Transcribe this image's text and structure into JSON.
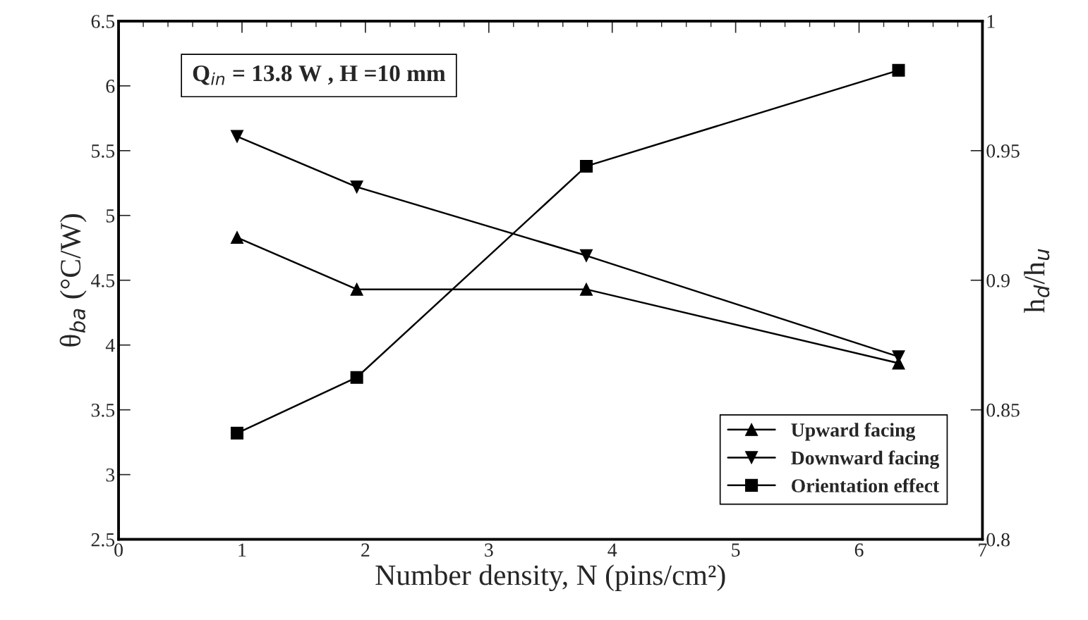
{
  "chart_data": {
    "type": "line",
    "xlabel": "Number density, N (pins/cm²)",
    "ylabel": "θ$_{ba}$ (°C/W)",
    "y2label": "h$_{d}$/h$_{u}$",
    "annotations": [
      "Q$_{in}$ = 13.8 W , H =10 mm"
    ],
    "x": [
      0.96,
      1.93,
      3.79,
      6.32
    ],
    "series": [
      {
        "name": "Upward facing",
        "color": "#000000",
        "marker": "triangle",
        "values": [
          4.83,
          4.43,
          4.43,
          3.86
        ]
      },
      {
        "name": "Downward facing",
        "color": "#000000",
        "marker": "triangle_down",
        "values": [
          5.61,
          5.22,
          4.69,
          3.91
        ]
      },
      {
        "name": "Orientation effect",
        "color": "#000000",
        "marker": "square",
        "axis": "y2",
        "values": [
          0.841,
          0.8625,
          0.944,
          0.981
        ]
      }
    ],
    "xlim": [
      0,
      7
    ],
    "xticks": [
      0,
      1,
      2,
      3,
      4,
      5,
      6,
      7
    ],
    "ylim": [
      2.5,
      6.5
    ],
    "yticks": [
      2.5,
      3,
      3.5,
      4,
      4.5,
      5,
      5.5,
      6,
      6.5
    ],
    "y2lim": [
      0.8,
      1
    ],
    "y2ticks": [
      0.8,
      0.85,
      0.9,
      0.95,
      1
    ],
    "legend": "bottom right",
    "grid": false,
    "line_style": "solid"
  }
}
